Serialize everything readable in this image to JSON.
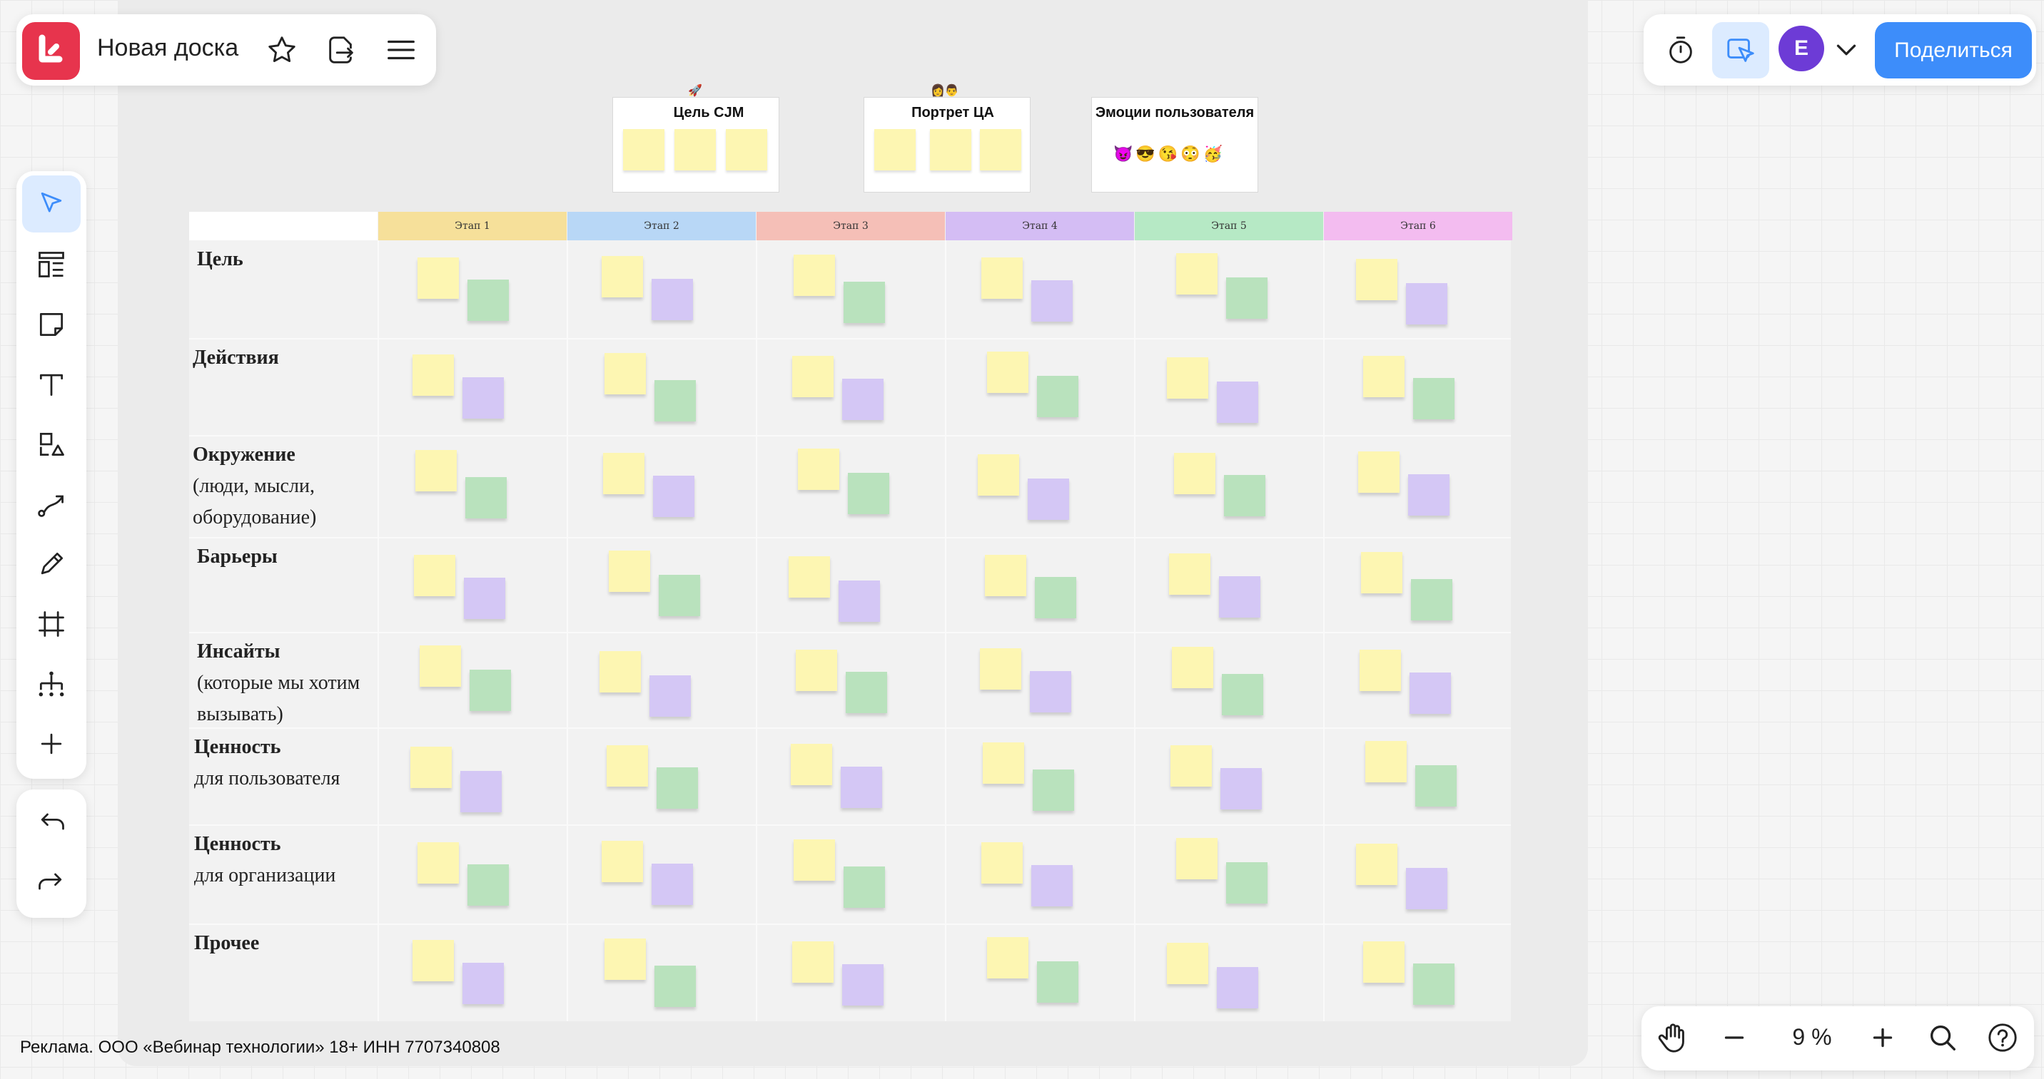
{
  "header": {
    "board_title": "Новая доска",
    "share_label": "Поделиться",
    "avatar_letter": "E"
  },
  "icons": {
    "logo": "logo-icon",
    "favorite": "star-icon",
    "export": "export-icon",
    "menu": "hamburger-icon",
    "timer": "timer-icon",
    "follow": "cursor-follow-icon",
    "chevron": "chevron-down-icon"
  },
  "toolbar": [
    "cursor-icon",
    "templates-icon",
    "sticky-note-icon",
    "text-icon",
    "shapes-icon",
    "connector-icon",
    "pen-icon",
    "frame-icon",
    "mindmap-icon",
    "plus-icon"
  ],
  "footer": {
    "ad_text": "Реклама. ООО «Вебинар технологии» 18+ ИНН 7707340808",
    "zoom": "9 %"
  },
  "top_cards": [
    {
      "title": "Цель CJM",
      "emoji": "🚀"
    },
    {
      "title": "Портрет ЦА",
      "emoji": "👩👨"
    },
    {
      "title": "Эмоции пользователя",
      "emoji": "😈😎😘😳🥳"
    }
  ],
  "stages": [
    {
      "label": "Этап 1",
      "color": "#f6e09a"
    },
    {
      "label": "Этап 2",
      "color": "#b8d7f6"
    },
    {
      "label": "Этап 3",
      "color": "#f5bfb7"
    },
    {
      "label": "Этап 4",
      "color": "#d4bdf4"
    },
    {
      "label": "Этап 5",
      "color": "#b6e9c5"
    },
    {
      "label": "Этап 6",
      "color": "#f3bcf0"
    }
  ],
  "rows": [
    {
      "title": "Цель",
      "sub": []
    },
    {
      "title": "Действия",
      "sub": []
    },
    {
      "title": "Окружение",
      "sub": [
        "(люди, мысли,",
        "оборудование)"
      ]
    },
    {
      "title": "Барьеры",
      "sub": []
    },
    {
      "title": "Инсайты",
      "sub": [
        "(которые мы хотим",
        "вызывать)"
      ]
    },
    {
      "title": "Ценность",
      "sub": [
        "для пользователя"
      ]
    },
    {
      "title": "Ценность",
      "sub": [
        "для организации"
      ]
    },
    {
      "title": "Прочее",
      "sub": []
    }
  ],
  "second_note_colors": [
    [
      "g",
      "p",
      "g",
      "p",
      "g",
      "p"
    ],
    [
      "p",
      "g",
      "p",
      "g",
      "p",
      "g"
    ],
    [
      "g",
      "p",
      "g",
      "p",
      "g",
      "p"
    ],
    [
      "p",
      "g",
      "p",
      "g",
      "p",
      "g"
    ],
    [
      "g",
      "p",
      "g",
      "p",
      "g",
      "p"
    ],
    [
      "p",
      "g",
      "p",
      "g",
      "p",
      "g"
    ],
    [
      "g",
      "p",
      "g",
      "p",
      "g",
      "p"
    ],
    [
      "p",
      "g",
      "p",
      "g",
      "p",
      "g"
    ]
  ]
}
